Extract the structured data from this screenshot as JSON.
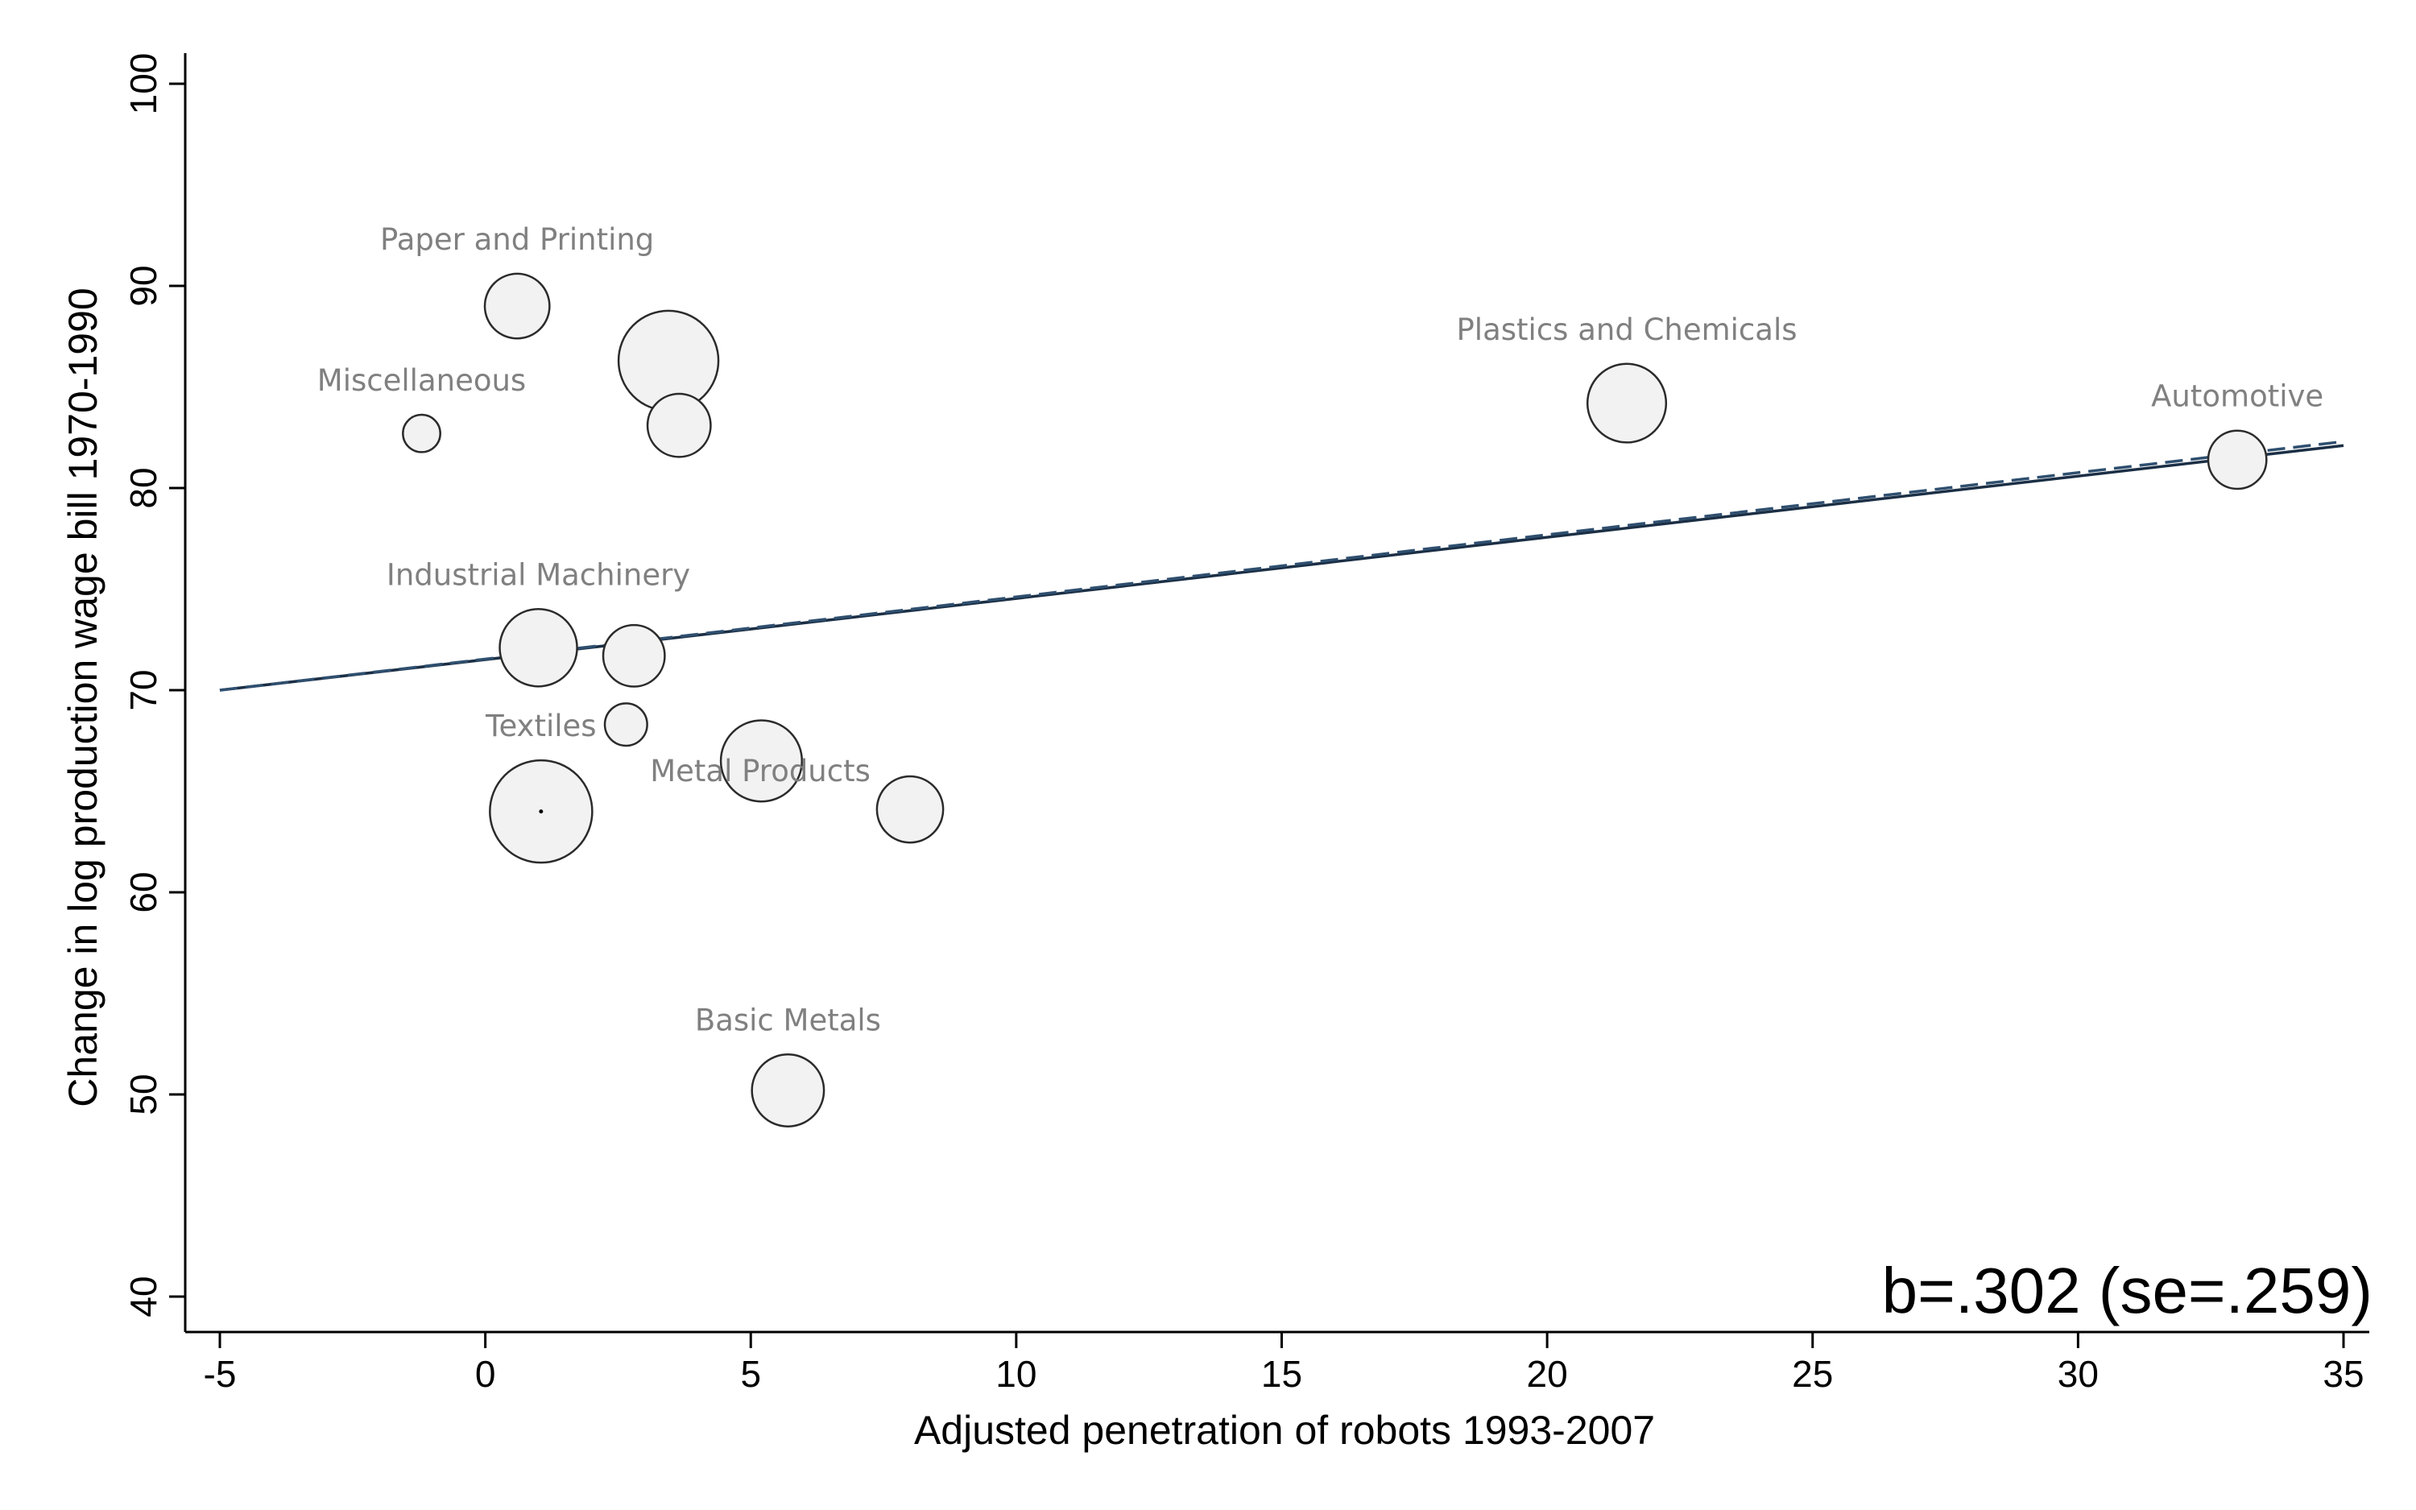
{
  "chart_data": {
    "type": "scatter",
    "title": "",
    "xlabel": "Adjusted penetration of robots 1993-2007",
    "ylabel": "Change in log production wage bill 1970-1990",
    "xlim": [
      -5,
      35
    ],
    "ylim": [
      40,
      100
    ],
    "xticks": [
      -5,
      0,
      5,
      10,
      15,
      20,
      25,
      30,
      35
    ],
    "yticks": [
      40,
      50,
      60,
      70,
      80,
      90,
      100
    ],
    "annotation": "b=.302 (se=.259)",
    "legend": "none",
    "grid": false,
    "points": [
      {
        "label": "Paper and Printing",
        "x": 0.6,
        "y": 89.0,
        "weight": 0.42
      },
      {
        "label": "",
        "x": 3.45,
        "y": 86.3,
        "weight": 1.0
      },
      {
        "label": "",
        "x": 3.65,
        "y": 83.1,
        "weight": 0.4
      },
      {
        "label": "Miscellaneous",
        "x": -1.2,
        "y": 82.7,
        "weight": 0.14
      },
      {
        "label": "Plastics and Chemicals",
        "x": 21.5,
        "y": 84.2,
        "weight": 0.62
      },
      {
        "label": "Automotive",
        "x": 33.0,
        "y": 81.4,
        "weight": 0.34
      },
      {
        "label": "Industrial Machinery",
        "x": 1.0,
        "y": 72.1,
        "weight": 0.6
      },
      {
        "label": "",
        "x": 2.8,
        "y": 71.7,
        "weight": 0.38
      },
      {
        "label": "",
        "x": 2.65,
        "y": 68.3,
        "weight": 0.18
      },
      {
        "label": "Metal Products",
        "x": 8.0,
        "y": 64.1,
        "weight": 0.44
      },
      {
        "label": "",
        "x": 5.2,
        "y": 66.5,
        "weight": 0.66
      },
      {
        "label": "Textiles",
        "x": 1.05,
        "y": 64.0,
        "weight": 1.05
      },
      {
        "label": "Basic Metals",
        "x": 5.7,
        "y": 50.2,
        "weight": 0.52
      }
    ],
    "fit_lines": [
      {
        "style": "solid",
        "x": [
          -5,
          35
        ],
        "y": [
          70.0,
          82.1
        ]
      },
      {
        "style": "dashed",
        "x": [
          -5,
          35
        ],
        "y": [
          70.0,
          82.3
        ]
      }
    ]
  }
}
